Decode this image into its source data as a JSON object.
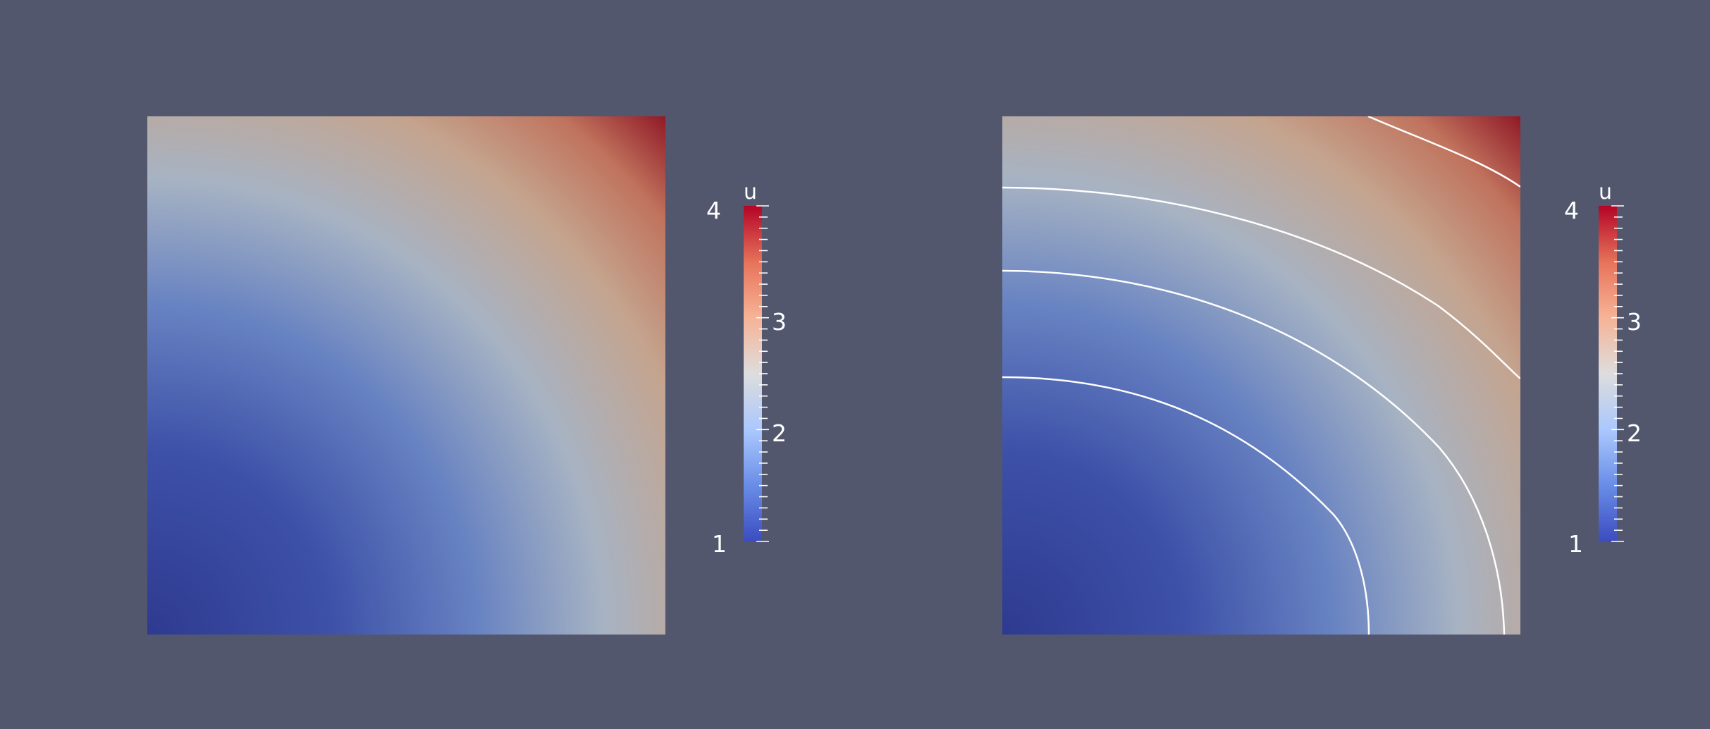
{
  "views": [
    {
      "id": "left",
      "field": "u",
      "contours": false,
      "colorbar": {
        "title": "u",
        "range": [
          1,
          4
        ],
        "major_labels": [
          "4",
          "3",
          "2",
          "1"
        ],
        "colormap": [
          "#3b4cc0",
          "#6a8ee8",
          "#aac7fd",
          "#dddddd",
          "#f7b295",
          "#e7745b",
          "#b40426"
        ]
      }
    },
    {
      "id": "right",
      "field": "u",
      "contours": true,
      "contour_line_color": "#ffffff",
      "colorbar": {
        "title": "u",
        "range": [
          1,
          4
        ],
        "major_labels": [
          "4",
          "3",
          "2",
          "1"
        ],
        "colormap": [
          "#3b4cc0",
          "#6a8ee8",
          "#aac7fd",
          "#dddddd",
          "#f7b295",
          "#e7745b",
          "#b40426"
        ]
      }
    }
  ],
  "background_color": "#52576e"
}
